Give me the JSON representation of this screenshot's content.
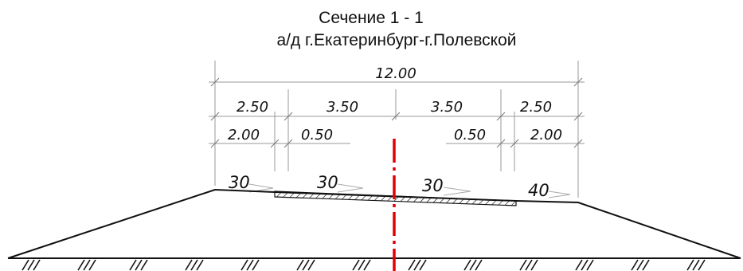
{
  "title": {
    "line1": "Сечение 1 - 1",
    "line2": "а/д г.Екатеринбург-г.Полевской"
  },
  "dimensions": {
    "total": "12.00",
    "row1": [
      "2.50",
      "3.50",
      "3.50",
      "2.50"
    ],
    "row2": [
      "2.00",
      "0.50",
      "0.50",
      "2.00"
    ]
  },
  "slopes": [
    "30",
    "30",
    "30",
    "40"
  ],
  "colors": {
    "axis": "#e00000",
    "lines": "#111111",
    "dims": "#9a9a9a"
  }
}
